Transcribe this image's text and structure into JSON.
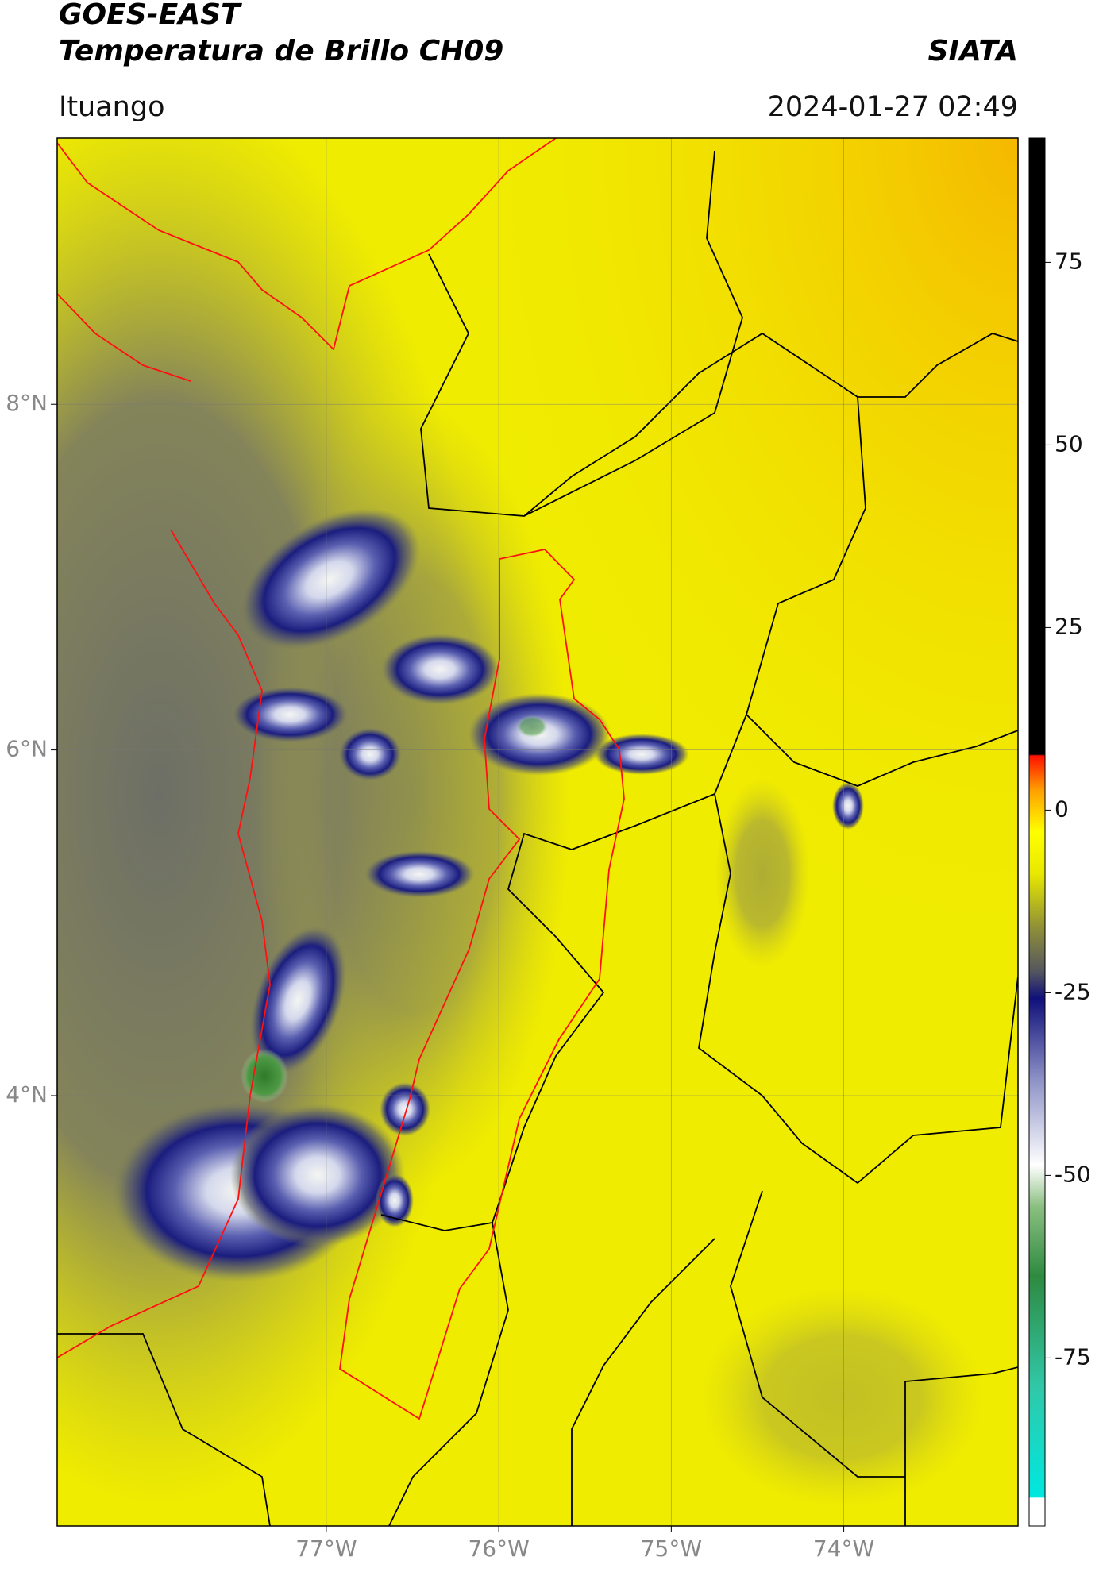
{
  "header": {
    "satellite": "GOES-EAST",
    "product": "Temperatura de Brillo CH09",
    "brand": "SIATA",
    "region": "Ituango",
    "datetime": "2024-01-27 02:49"
  },
  "map": {
    "xlim": [
      -78.56,
      -72.99
    ],
    "ylim": [
      1.51,
      9.54
    ],
    "xticks": [
      {
        "value": -77,
        "label": "77°W"
      },
      {
        "value": -76,
        "label": "76°W"
      },
      {
        "value": -75,
        "label": "75°W"
      },
      {
        "value": -74,
        "label": "74°W"
      }
    ],
    "yticks": [
      {
        "value": 4,
        "label": "4°N"
      },
      {
        "value": 6,
        "label": "6°N"
      },
      {
        "value": 8,
        "label": "8°N"
      }
    ],
    "grid": true
  },
  "colorbar": {
    "lim": [
      -98,
      92
    ],
    "ticks": [
      -75,
      -50,
      -25,
      0,
      25,
      50,
      75
    ]
  }
}
